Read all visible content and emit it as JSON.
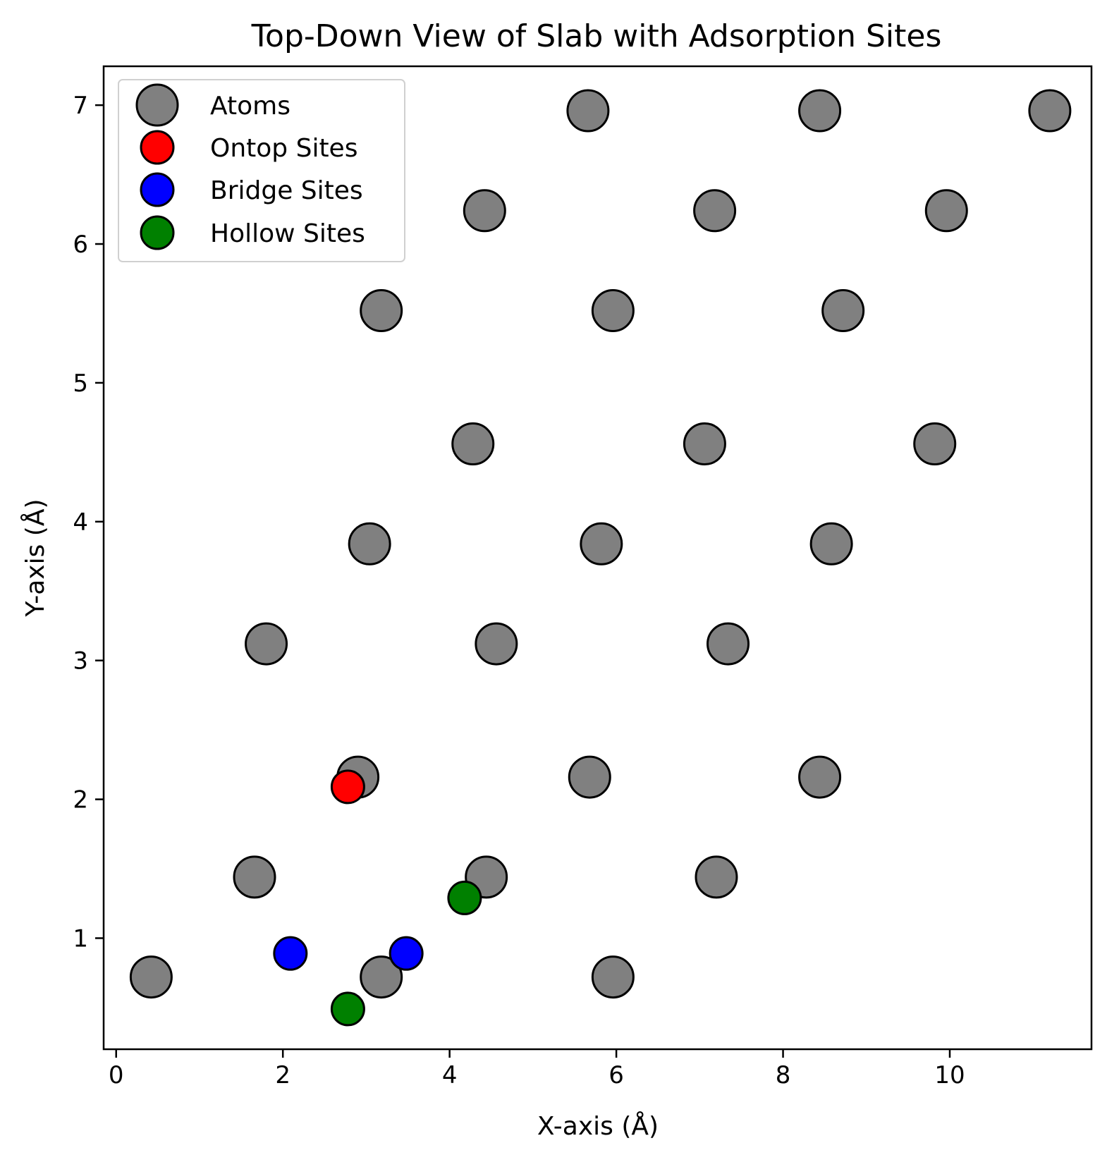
{
  "chart_data": {
    "type": "scatter",
    "title": "Top-Down View of Slab with Adsorption Sites",
    "xlabel": "X-axis (Å)",
    "ylabel": "Y-axis (Å)",
    "xlim": [
      -0.15,
      11.7
    ],
    "ylim": [
      0.2,
      7.28
    ],
    "x_ticks": [
      0,
      2,
      4,
      6,
      8,
      10
    ],
    "y_ticks": [
      1,
      2,
      3,
      4,
      5,
      6,
      7
    ],
    "grid": false,
    "legend_position": "top-left",
    "series": [
      {
        "name": "Atoms",
        "color": "#808080",
        "marker": "large-circle",
        "points": [
          [
            0.42,
            0.72
          ],
          [
            3.18,
            0.72
          ],
          [
            5.96,
            0.72
          ],
          [
            1.66,
            1.44
          ],
          [
            4.44,
            1.44
          ],
          [
            7.2,
            1.44
          ],
          [
            2.9,
            2.16
          ],
          [
            5.68,
            2.16
          ],
          [
            8.44,
            2.16
          ],
          [
            1.8,
            3.12
          ],
          [
            4.56,
            3.12
          ],
          [
            7.34,
            3.12
          ],
          [
            3.04,
            3.84
          ],
          [
            5.82,
            3.84
          ],
          [
            8.58,
            3.84
          ],
          [
            4.28,
            4.56
          ],
          [
            7.06,
            4.56
          ],
          [
            9.82,
            4.56
          ],
          [
            3.18,
            5.52
          ],
          [
            5.96,
            5.52
          ],
          [
            8.72,
            5.52
          ],
          [
            4.42,
            6.24
          ],
          [
            7.18,
            6.24
          ],
          [
            9.96,
            6.24
          ],
          [
            5.66,
            6.96
          ],
          [
            8.44,
            6.96
          ],
          [
            11.2,
            6.96
          ]
        ]
      },
      {
        "name": "Ontop Sites",
        "color": "#ff0000",
        "marker": "small-circle",
        "points": [
          [
            2.78,
            2.09
          ]
        ]
      },
      {
        "name": "Bridge Sites",
        "color": "#0000ff",
        "marker": "small-circle",
        "points": [
          [
            2.09,
            0.89
          ],
          [
            3.48,
            0.89
          ]
        ]
      },
      {
        "name": "Hollow Sites",
        "color": "#008000",
        "marker": "small-circle",
        "points": [
          [
            2.78,
            0.49
          ],
          [
            4.18,
            1.29
          ]
        ]
      }
    ]
  }
}
